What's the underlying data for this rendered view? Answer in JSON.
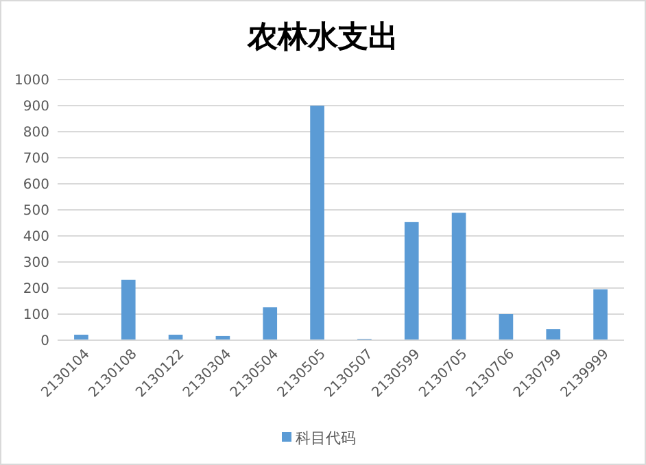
{
  "chart_data": {
    "type": "bar",
    "title": "农林水支出",
    "categories": [
      "2130104",
      "2130108",
      "2130122",
      "2130304",
      "2130504",
      "2130505",
      "2130507",
      "2130599",
      "2130705",
      "2130706",
      "2130799",
      "2139999"
    ],
    "series": [
      {
        "name": "科目代码",
        "color": "#5b9bd5",
        "values": [
          21,
          232,
          21,
          16,
          126,
          900,
          5,
          453,
          489,
          100,
          42,
          195
        ]
      }
    ],
    "ylim": [
      0,
      1000
    ],
    "yticks": [
      0,
      100,
      200,
      300,
      400,
      500,
      600,
      700,
      800,
      900,
      1000
    ],
    "grid": "y",
    "legend": "bottom"
  }
}
